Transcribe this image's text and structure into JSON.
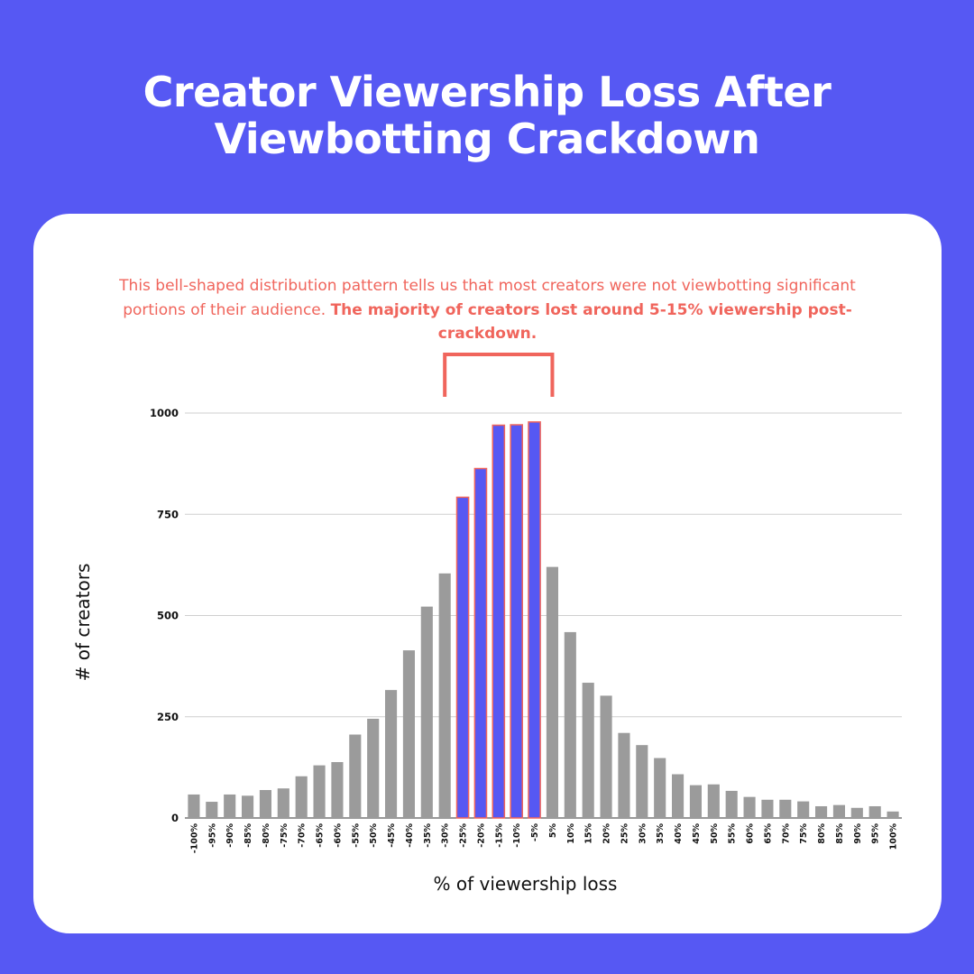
{
  "title_line1": "Creator Viewership Loss After",
  "title_line2": "Viewbotting Crackdown",
  "note": {
    "regular": "This bell-shaped distribution pattern tells us that most creators were not viewbotting significant portions of their audience. ",
    "bold": "The majority of creators lost around 5-15% viewership post-crackdown."
  },
  "colors": {
    "background": "#5658f3",
    "card": "#ffffff",
    "accent_text": "#f0655c",
    "bar_default": "#9b9b9b",
    "bar_highlight": "#5658f3",
    "bar_highlight_stroke": "#f0655c",
    "bracket": "#f0655c",
    "grid": "#cfcfcf"
  },
  "chart_data": {
    "type": "bar",
    "categories": [
      "-100%",
      "-95%",
      "-90%",
      "-85%",
      "-80%",
      "-75%",
      "-70%",
      "-65%",
      "-60%",
      "-55%",
      "-50%",
      "-45%",
      "-40%",
      "-35%",
      "-30%",
      "-25%",
      "-20%",
      "-15%",
      "-10%",
      "-5%",
      "5%",
      "10%",
      "15%",
      "20%",
      "25%",
      "30%",
      "35%",
      "40%",
      "45%",
      "50%",
      "55%",
      "60%",
      "65%",
      "70%",
      "75%",
      "80%",
      "85%",
      "90%",
      "95%",
      "100%"
    ],
    "values": [
      58,
      40,
      58,
      55,
      69,
      73,
      103,
      130,
      138,
      206,
      245,
      316,
      414,
      522,
      604,
      792,
      863,
      970,
      971,
      978,
      620,
      459,
      334,
      302,
      210,
      180,
      148,
      108,
      81,
      83,
      67,
      52,
      45,
      45,
      41,
      29,
      32,
      25,
      29,
      16
    ],
    "highlighted": [
      "-25%",
      "-20%",
      "-15%",
      "-10%",
      "-5%"
    ],
    "bracket_over": [
      "-30%",
      "5%"
    ],
    "xlabel": "% of viewership loss",
    "ylabel": "# of creators",
    "ylim": [
      0,
      1000
    ],
    "yticks": [
      0,
      250,
      500,
      750,
      1000
    ],
    "grid": true,
    "legend": "none"
  }
}
